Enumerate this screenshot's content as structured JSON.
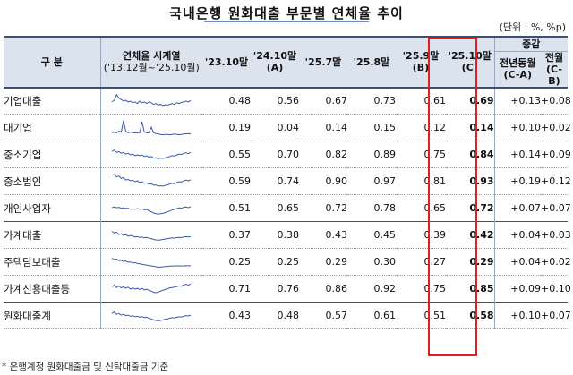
{
  "title": "국내은행 원화대출 부문별 연체율 추이",
  "unit": "(단위 : %, %p)",
  "header": {
    "category": "구 분",
    "series_l1": "연체율 시계열",
    "series_l2": "('13.12월~'25.10월)",
    "cols": [
      {
        "l1": "'23.10말",
        "l2": ""
      },
      {
        "l1": "'24.10말",
        "l2": "(A)"
      },
      {
        "l1": "'25.7말",
        "l2": ""
      },
      {
        "l1": "'25.8말",
        "l2": ""
      },
      {
        "l1": "'25.9말",
        "l2": "(B)"
      },
      {
        "l1": "'25.10말",
        "l2": "(C)"
      }
    ],
    "change_group": "증감",
    "change_cols": [
      {
        "l1": "전년동월",
        "l2": "(C-A)"
      },
      {
        "l1": "전월",
        "l2": "(C-B)"
      }
    ]
  },
  "rows": [
    {
      "label": "기업대출",
      "level": 0,
      "values": [
        "0.48",
        "0.56",
        "0.67",
        "0.73",
        "0.61",
        "0.69"
      ],
      "yoy": "+0.13",
      "mom": "+0.08",
      "spark": [
        0.45,
        0.55,
        0.9,
        0.7,
        0.6,
        0.5,
        0.55,
        0.45,
        0.5,
        0.4,
        0.45,
        0.35,
        0.5,
        0.4,
        0.45,
        0.35,
        0.45,
        0.4,
        0.3,
        0.35,
        0.25,
        0.3,
        0.22,
        0.28,
        0.25,
        0.3,
        0.35,
        0.3,
        0.4,
        0.35,
        0.42,
        0.45,
        0.5,
        0.45,
        0.55
      ]
    },
    {
      "label": "대기업",
      "level": 1,
      "values": [
        "0.19",
        "0.04",
        "0.14",
        "0.15",
        "0.12",
        "0.14"
      ],
      "yoy": "+0.10",
      "mom": "+0.02",
      "spark": [
        0.2,
        0.25,
        0.2,
        0.3,
        0.25,
        0.95,
        0.3,
        0.2,
        0.25,
        0.2,
        0.2,
        0.2,
        0.2,
        0.9,
        0.25,
        0.2,
        0.2,
        0.55,
        0.2,
        0.15,
        0.12,
        0.1,
        0.08,
        0.1,
        0.1,
        0.08,
        0.1,
        0.12,
        0.1,
        0.08,
        0.1,
        0.12,
        0.14,
        0.15,
        0.14
      ]
    },
    {
      "label": "중소기업",
      "level": 1,
      "values": [
        "0.55",
        "0.70",
        "0.82",
        "0.89",
        "0.75",
        "0.84"
      ],
      "yoy": "+0.14",
      "mom": "+0.09",
      "spark": [
        0.7,
        0.8,
        0.65,
        0.7,
        0.6,
        0.65,
        0.55,
        0.6,
        0.5,
        0.55,
        0.45,
        0.5,
        0.45,
        0.5,
        0.4,
        0.45,
        0.35,
        0.4,
        0.3,
        0.32,
        0.25,
        0.3,
        0.28,
        0.32,
        0.35,
        0.4,
        0.45,
        0.42,
        0.5,
        0.55,
        0.52,
        0.6,
        0.62,
        0.58,
        0.65
      ]
    },
    {
      "label": "중소법인",
      "level": 2,
      "values": [
        "0.59",
        "0.74",
        "0.90",
        "0.97",
        "0.81",
        "0.93"
      ],
      "yoy": "+0.19",
      "mom": "+0.12",
      "spark": [
        0.9,
        0.95,
        0.8,
        0.85,
        0.7,
        0.75,
        0.6,
        0.65,
        0.55,
        0.6,
        0.5,
        0.55,
        0.45,
        0.5,
        0.4,
        0.42,
        0.35,
        0.38,
        0.28,
        0.3,
        0.22,
        0.25,
        0.22,
        0.28,
        0.3,
        0.35,
        0.4,
        0.38,
        0.45,
        0.5,
        0.48,
        0.55,
        0.6,
        0.55,
        0.62
      ]
    },
    {
      "label": "개인사업자",
      "level": 2,
      "values": [
        "0.51",
        "0.65",
        "0.72",
        "0.78",
        "0.65",
        "0.72"
      ],
      "yoy": "+0.07",
      "mom": "+0.07",
      "spark": [
        0.55,
        0.6,
        0.55,
        0.58,
        0.52,
        0.55,
        0.5,
        0.52,
        0.45,
        0.48,
        0.45,
        0.5,
        0.45,
        0.48,
        0.42,
        0.45,
        0.35,
        0.3,
        0.22,
        0.18,
        0.15,
        0.18,
        0.2,
        0.25,
        0.3,
        0.35,
        0.4,
        0.45,
        0.5,
        0.55,
        0.52,
        0.58,
        0.6,
        0.55,
        0.62
      ]
    },
    {
      "label": "가계대출",
      "level": 0,
      "values": [
        "0.37",
        "0.38",
        "0.43",
        "0.45",
        "0.39",
        "0.42"
      ],
      "yoy": "+0.04",
      "mom": "+0.03",
      "spark": [
        0.75,
        0.65,
        0.7,
        0.55,
        0.6,
        0.5,
        0.55,
        0.45,
        0.5,
        0.45,
        0.4,
        0.42,
        0.38,
        0.4,
        0.35,
        0.38,
        0.32,
        0.3,
        0.25,
        0.22,
        0.2,
        0.22,
        0.25,
        0.28,
        0.3,
        0.32,
        0.35,
        0.33,
        0.36,
        0.38,
        0.36,
        0.4,
        0.42,
        0.4,
        0.42
      ]
    },
    {
      "label": "주택담보대출",
      "level": 1,
      "values": [
        "0.25",
        "0.25",
        "0.29",
        "0.30",
        "0.27",
        "0.29"
      ],
      "yoy": "+0.04",
      "mom": "+0.02",
      "spark": [
        0.75,
        0.65,
        0.7,
        0.6,
        0.62,
        0.55,
        0.58,
        0.5,
        0.52,
        0.45,
        0.48,
        0.42,
        0.4,
        0.38,
        0.35,
        0.33,
        0.3,
        0.28,
        0.25,
        0.22,
        0.2,
        0.2,
        0.22,
        0.24,
        0.25,
        0.26,
        0.27,
        0.27,
        0.28,
        0.28,
        0.27,
        0.28,
        0.29,
        0.28,
        0.29
      ]
    },
    {
      "label": "가계신용대출등",
      "level": 1,
      "values": [
        "0.71",
        "0.76",
        "0.86",
        "0.92",
        "0.75",
        "0.85"
      ],
      "yoy": "+0.09",
      "mom": "+0.10",
      "spark": [
        0.65,
        0.75,
        0.6,
        0.7,
        0.58,
        0.65,
        0.55,
        0.62,
        0.5,
        0.58,
        0.5,
        0.55,
        0.48,
        0.55,
        0.45,
        0.5,
        0.42,
        0.38,
        0.3,
        0.28,
        0.32,
        0.38,
        0.42,
        0.48,
        0.52,
        0.58,
        0.6,
        0.62,
        0.66,
        0.7,
        0.68,
        0.75,
        0.8,
        0.75,
        0.82
      ]
    },
    {
      "label": "원화대출계",
      "level": 0,
      "values": [
        "0.43",
        "0.48",
        "0.57",
        "0.61",
        "0.51",
        "0.58"
      ],
      "yoy": "+0.10",
      "mom": "+0.07",
      "spark": [
        0.65,
        0.75,
        0.6,
        0.65,
        0.55,
        0.6,
        0.52,
        0.55,
        0.48,
        0.52,
        0.45,
        0.48,
        0.42,
        0.46,
        0.4,
        0.42,
        0.35,
        0.32,
        0.25,
        0.22,
        0.2,
        0.22,
        0.25,
        0.3,
        0.32,
        0.36,
        0.4,
        0.38,
        0.42,
        0.45,
        0.44,
        0.48,
        0.52,
        0.5,
        0.55
      ]
    }
  ],
  "footnote": "* 은행계정 원화대출금 및 신탁대출금 기준",
  "colors": {
    "header_bg": "#dbe3ef",
    "border": "#3d4f72",
    "highlight": "#e02020",
    "spark": "#3a5aa8"
  }
}
